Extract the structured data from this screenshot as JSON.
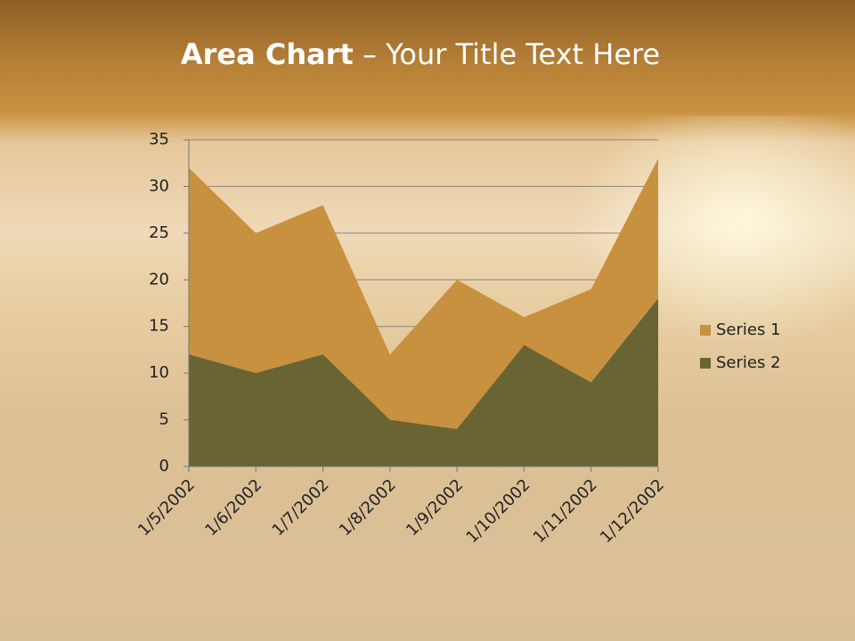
{
  "chart_data": {
    "type": "area",
    "title_parts": [
      "Area Chart",
      "– Your Title Text Here"
    ],
    "categories": [
      "1/5/2002",
      "1/6/2002",
      "1/7/2002",
      "1/8/2002",
      "1/9/2002",
      "1/10/2002",
      "1/11/2002",
      "1/12/2002"
    ],
    "series": [
      {
        "name": "Series 1",
        "color": "#c8913f",
        "values": [
          32,
          25,
          28,
          12,
          20,
          16,
          19,
          33
        ]
      },
      {
        "name": "Series 2",
        "color": "#686434",
        "values": [
          12,
          10,
          12,
          5,
          4,
          13,
          9,
          18
        ]
      }
    ],
    "ylim": [
      0,
      35
    ],
    "yticks": [
      0,
      5,
      10,
      15,
      20,
      25,
      30,
      35
    ],
    "grid": true,
    "legend": "right"
  }
}
